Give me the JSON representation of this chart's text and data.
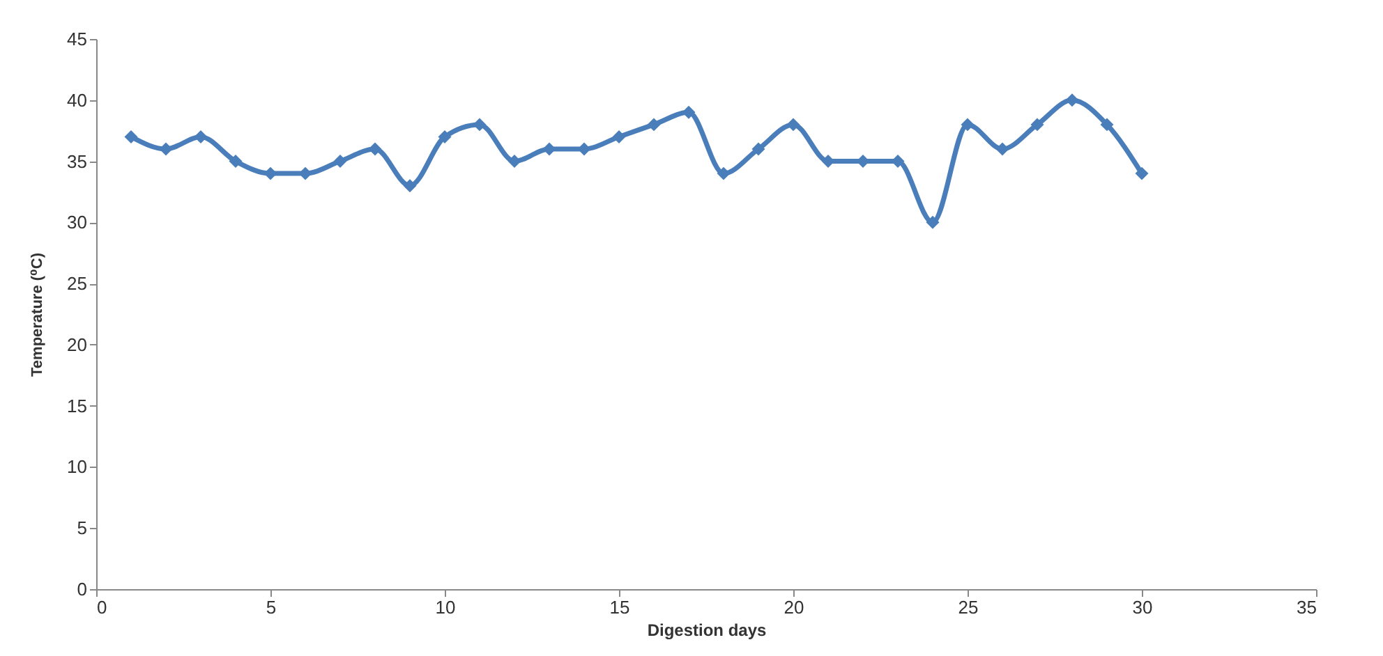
{
  "chart_data": {
    "type": "line",
    "xlabel": "Digestion days",
    "ylabel": "Temperature (⁰C)",
    "x": [
      1,
      2,
      3,
      4,
      5,
      6,
      7,
      8,
      9,
      10,
      11,
      12,
      13,
      14,
      15,
      16,
      17,
      18,
      19,
      20,
      21,
      22,
      23,
      24,
      25,
      26,
      27,
      28,
      29,
      30
    ],
    "series": [
      {
        "color": "#4a7ebb",
        "values": [
          37,
          36,
          37,
          35,
          34,
          34,
          35,
          36,
          33,
          37,
          38,
          35,
          36,
          36,
          37,
          38,
          39,
          34,
          36,
          38,
          35,
          35,
          35,
          30,
          38,
          36,
          38,
          40,
          38,
          34
        ]
      }
    ],
    "xlim": [
      0,
      35
    ],
    "xticks": [
      0,
      5,
      10,
      15,
      20,
      25,
      30,
      35
    ],
    "ylim": [
      0,
      45
    ],
    "yticks": [
      0,
      5,
      10,
      15,
      20,
      25,
      30,
      35,
      40,
      45
    ],
    "grid": false,
    "marker": "diamond",
    "line_style": "solid"
  }
}
